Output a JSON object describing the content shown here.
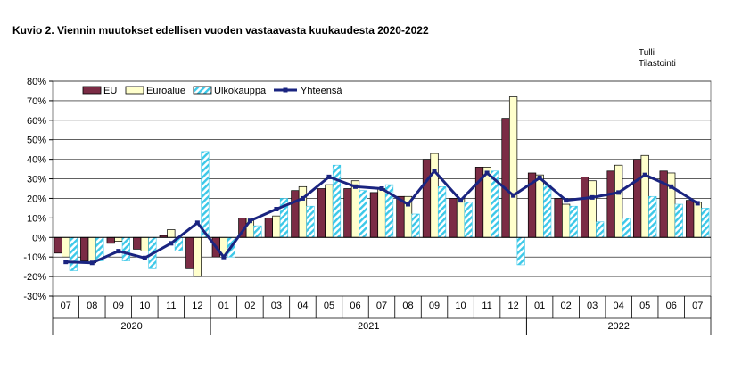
{
  "title": "Kuvio  2. Viennin  muutokset edellisen vuoden  vastaavasta kuukaudesta 2020-2022",
  "source": [
    "Tulli",
    "Tilastointi"
  ],
  "colors": {
    "eu": "#7b2c45",
    "euroalue": "#ffffcc",
    "ulkokauppa": "#3cc8e8",
    "yhteensa": "#1a2480"
  },
  "chart_data": {
    "type": "bar",
    "categories": [
      "07",
      "08",
      "09",
      "10",
      "11",
      "12",
      "01",
      "02",
      "03",
      "04",
      "05",
      "06",
      "07",
      "08",
      "09",
      "10",
      "11",
      "12",
      "01",
      "02",
      "03",
      "04",
      "05",
      "06",
      "07"
    ],
    "year_groups": [
      {
        "label": "2020",
        "start": 0,
        "end": 5
      },
      {
        "label": "2021",
        "start": 6,
        "end": 17
      },
      {
        "label": "2022",
        "start": 18,
        "end": 24
      }
    ],
    "y_ticks": [
      "80%",
      "70%",
      "60%",
      "50%",
      "40%",
      "30%",
      "20%",
      "10%",
      "0%",
      "-10%",
      "-20%",
      "-30%"
    ],
    "ylim": [
      -30,
      80
    ],
    "grid": true,
    "legend_position": "top-left",
    "series": [
      {
        "name": "EU",
        "kind": "bar",
        "values": [
          -8,
          -12,
          -3,
          -6,
          1,
          -16,
          -10,
          10,
          10,
          24,
          25,
          25,
          23,
          21,
          40,
          20,
          36,
          61,
          33,
          20,
          31,
          34,
          40,
          34,
          19
        ]
      },
      {
        "name": "Euroalue",
        "kind": "bar",
        "values": [
          -10,
          -13,
          -2,
          -7,
          4,
          -20,
          -9,
          10,
          11,
          26,
          27,
          29,
          25,
          21,
          43,
          20,
          36,
          72,
          32,
          17,
          29,
          37,
          42,
          33,
          18
        ]
      },
      {
        "name": "Ulkokauppa",
        "kind": "bar",
        "values": [
          -17,
          -12,
          -12,
          -16,
          -7,
          44,
          -10,
          6,
          20,
          16,
          37,
          24,
          27,
          12,
          26,
          18,
          34,
          -14,
          27,
          16,
          8,
          10,
          21,
          17,
          15
        ]
      },
      {
        "name": "Yhteensä",
        "kind": "line",
        "values": [
          -12.5,
          -13,
          -7,
          -10.5,
          -3,
          7.5,
          -10,
          8.5,
          14.5,
          20,
          31,
          26,
          25,
          17,
          34,
          19,
          33,
          21.5,
          30.5,
          19,
          20.5,
          23,
          32,
          26,
          17.5
        ]
      }
    ]
  }
}
